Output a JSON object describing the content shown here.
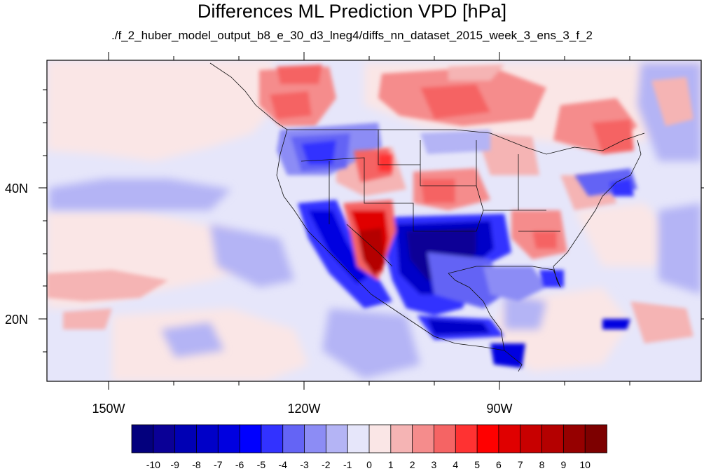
{
  "title": "Differences ML Prediction VPD [hPa]",
  "subtitle": "./f_2_huber_model_output_b8_e_30_d3_lneg4/diffs_nn_dataset_2015_week_3_ens_3_f_2",
  "axes": {
    "x_ticks": [
      "150W",
      "120W",
      "90W"
    ],
    "y_ticks": [
      "40N",
      "20N"
    ]
  },
  "colorbar": {
    "labels": [
      "-10",
      "-9",
      "-8",
      "-7",
      "-6",
      "-5",
      "-4",
      "-3",
      "-2",
      "-1",
      "0",
      "1",
      "2",
      "3",
      "4",
      "5",
      "6",
      "7",
      "8",
      "9",
      "10"
    ],
    "colors": [
      "#03007d",
      "#0a0096",
      "#0000b4",
      "#0000c8",
      "#0000e0",
      "#0000ff",
      "#3232ff",
      "#6464f5",
      "#8c8cf5",
      "#b4b4f5",
      "#e6e6fa",
      "#fae6e6",
      "#f5b4b4",
      "#f58c8c",
      "#f56464",
      "#ff3232",
      "#ff0000",
      "#e00000",
      "#c80000",
      "#b40000",
      "#960000",
      "#7d0000"
    ]
  }
}
